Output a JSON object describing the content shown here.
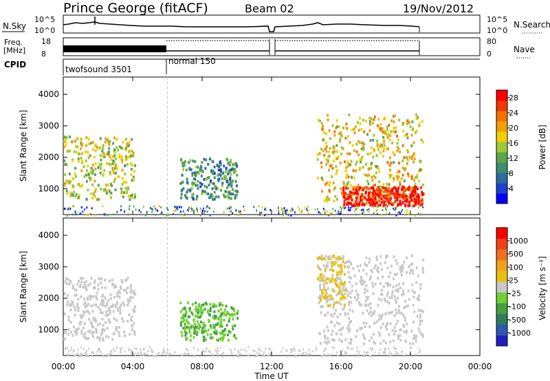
{
  "header": {
    "station": "Prince George (fitACF)",
    "beam": "Beam 02",
    "date": "19/Nov/2012"
  },
  "strips": {
    "nsky_label": "N.Sky",
    "nsky_ticks": [
      "10^5",
      "10^0"
    ],
    "nsearch_label": "N.Search",
    "freq_label_1": "Freq.",
    "freq_label_2": "[MHz]",
    "freq_ticks": [
      "18",
      "8"
    ],
    "nave_label": "Nave",
    "nave_ticks": [
      "80",
      "0"
    ],
    "cpid_label": "CPID",
    "cpid_entries": [
      {
        "name": "twofsound 3501",
        "start_hour": 0.0,
        "end_hour": 6.0
      },
      {
        "name": "normal 150",
        "start_hour": 6.0,
        "end_hour": 20.7
      }
    ]
  },
  "colors": {
    "grid": "#c8c8c8",
    "power": [
      "#0000ff",
      "#1f3fcf",
      "#2e6b9e",
      "#3c8c6e",
      "#5aa64a",
      "#9cc83a",
      "#f0d000",
      "#f0a000",
      "#f07000",
      "#f03800",
      "#ff0000"
    ],
    "velocity": [
      "#2020c0",
      "#2c5ab0",
      "#2e7c5a",
      "#44a040",
      "#70d030",
      "#c8c8c8",
      "#e8c010",
      "#f0a020",
      "#f07020",
      "#f04018",
      "#ff0000"
    ]
  },
  "chart_data": [
    {
      "type": "heatmap",
      "quantity": "Power",
      "xlabel": "",
      "ylabel": "Slant Range [km]",
      "x_ticks": [
        "00:00",
        "04:00",
        "08:00",
        "12:00",
        "16:00",
        "20:00",
        "00:00"
      ],
      "xlim_hours": [
        0,
        24
      ],
      "ylim": [
        180,
        4550
      ],
      "y_ticks": [
        1000,
        2000,
        3000,
        4000
      ],
      "colorbar": {
        "label": "Power [dB]",
        "ticks": [
          4,
          8,
          12,
          16,
          20,
          24,
          28
        ],
        "range": [
          0,
          30
        ]
      },
      "echo_regions": [
        {
          "t0": 0.0,
          "t1": 4.1,
          "r0": 700,
          "r1": 2700,
          "level": 16
        },
        {
          "t0": 6.7,
          "t1": 10.0,
          "r0": 700,
          "r1": 2000,
          "level": 10
        },
        {
          "t0": 14.6,
          "t1": 20.7,
          "r0": 600,
          "r1": 3400,
          "level": 18
        },
        {
          "t0": 16.0,
          "t1": 20.7,
          "r0": 500,
          "r1": 1100,
          "level": 28
        }
      ]
    },
    {
      "type": "heatmap",
      "quantity": "Velocity",
      "xlabel": "Time UT",
      "ylabel": "Slant Range [km]",
      "x_ticks": [
        "00:00",
        "04:00",
        "08:00",
        "12:00",
        "16:00",
        "20:00",
        "00:00"
      ],
      "xlim_hours": [
        0,
        24
      ],
      "ylim": [
        180,
        4550
      ],
      "y_ticks": [
        1000,
        2000,
        3000,
        4000
      ],
      "colorbar": {
        "label": "Velocity [m s⁻¹]",
        "ticks": [
          1000,
          500,
          100,
          25,
          -25,
          -100,
          -500,
          -1000
        ],
        "range": [
          -1200,
          1200
        ]
      },
      "echo_regions": [
        {
          "t0": 0.0,
          "t1": 4.1,
          "r0": 700,
          "r1": 2700,
          "level": 0
        },
        {
          "t0": 6.7,
          "t1": 10.0,
          "r0": 700,
          "r1": 1900,
          "level": -300
        },
        {
          "t0": 14.6,
          "t1": 20.7,
          "r0": 600,
          "r1": 3400,
          "level": 0
        },
        {
          "t0": 14.6,
          "t1": 16.2,
          "r0": 1800,
          "r1": 3400,
          "level": 150
        }
      ]
    }
  ]
}
